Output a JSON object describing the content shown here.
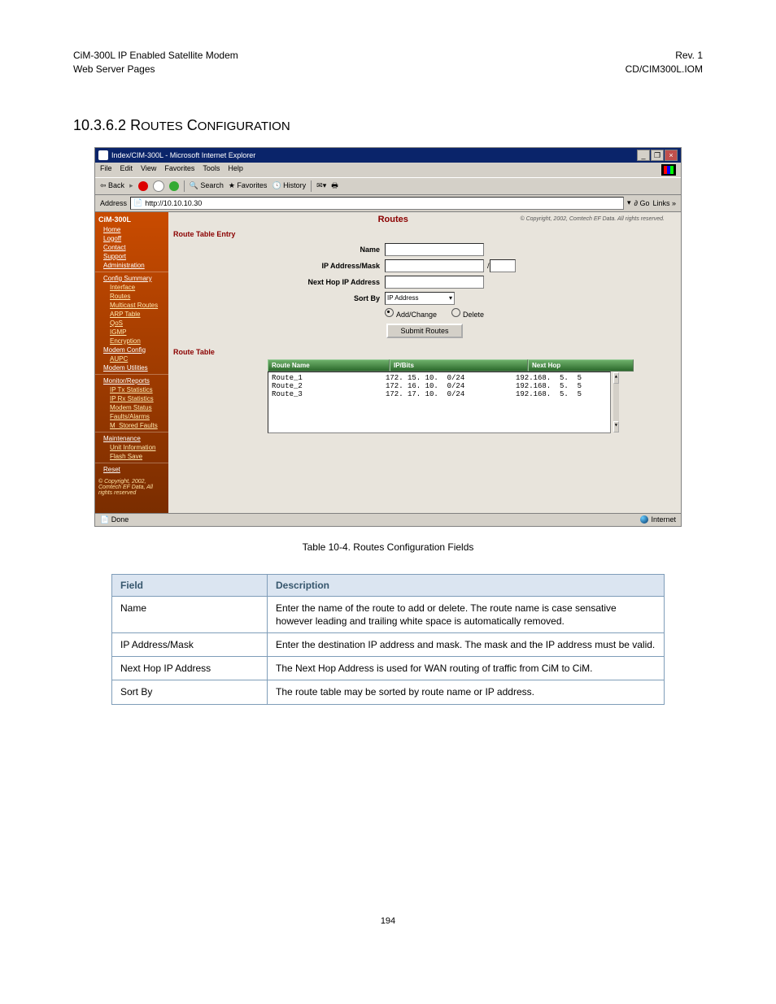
{
  "doc": {
    "header_left_line1": "CiM-300L IP Enabled Satellite Modem",
    "header_left_line2": "Web Server Pages",
    "header_right_line1": "Rev. 1",
    "header_right_line2": "CD/CIM300L.IOM",
    "section_number": "10.3.6.2",
    "section_title": "Routes Configuration",
    "caption": "Table 10-4.  Routes Configuration Fields",
    "page_number": "194"
  },
  "ie": {
    "title": "Index/CIM-300L - Microsoft Internet Explorer",
    "menus": [
      "File",
      "Edit",
      "View",
      "Favorites",
      "Tools",
      "Help"
    ],
    "toolbar_text": {
      "back": "Back",
      "search": "Search",
      "favorites": "Favorites",
      "history": "History"
    },
    "address_label": "Address",
    "address_value": "http://10.10.10.30",
    "go_label": "Go",
    "links_label": "Links »",
    "status_done": "Done",
    "status_zone": "Internet"
  },
  "sidebar": {
    "product": "CiM-300L",
    "links": [
      {
        "label": "Home",
        "sub": false
      },
      {
        "label": "Logoff",
        "sub": false
      },
      {
        "label": "Contact",
        "sub": false
      },
      {
        "label": "Support",
        "sub": false
      },
      {
        "label": "Administration",
        "sub": false,
        "sep": true
      },
      {
        "label": "Config Summary",
        "sub": false
      },
      {
        "label": "Interface",
        "sub": true
      },
      {
        "label": "Routes",
        "sub": true
      },
      {
        "label": "Multicast Routes",
        "sub": true
      },
      {
        "label": "ARP Table",
        "sub": true
      },
      {
        "label": "QoS",
        "sub": true
      },
      {
        "label": "IGMP",
        "sub": true
      },
      {
        "label": "Encryption",
        "sub": true
      },
      {
        "label": "Modem Config",
        "sub": false
      },
      {
        "label": "AUPC",
        "sub": true
      },
      {
        "label": "Modem Utilities",
        "sub": false,
        "sep": true
      },
      {
        "label": "Monitor/Reports",
        "sub": false
      },
      {
        "label": "IP Tx Statistics",
        "sub": true
      },
      {
        "label": "IP Rx Statistics",
        "sub": true
      },
      {
        "label": "Modem Status",
        "sub": true
      },
      {
        "label": "Faults/Alarms",
        "sub": true
      },
      {
        "label": "M_Stored Faults",
        "sub": true,
        "sep": true
      },
      {
        "label": "Maintenance",
        "sub": false
      },
      {
        "label": "Unit Information",
        "sub": true
      },
      {
        "label": "Flash Save",
        "sub": true,
        "sep": true
      },
      {
        "label": "Reset",
        "sub": false
      }
    ],
    "footer": "© Copyright, 2002, Comtech EF Data, All rights reserved"
  },
  "routes": {
    "page_title": "Routes",
    "page_copyright": "© Copyright, 2002, Comtech EF Data. All rights reserved.",
    "entry_heading": "Route Table Entry",
    "labels": {
      "name": "Name",
      "ipmask": "IP Address/Mask",
      "nexthop": "Next Hop IP Address",
      "sortby": "Sort By",
      "addchange": "Add/Change",
      "delete": "Delete",
      "submit": "Submit Routes"
    },
    "sort_value": "IP Address",
    "table_heading": "Route Table",
    "columns": [
      "Route Name",
      "IP/Bits",
      "Next Hop"
    ],
    "rows": [
      {
        "name": "Route_1",
        "ip": "172. 15. 10.  0/24",
        "hop": "192.168.  5.  5"
      },
      {
        "name": "Route_2",
        "ip": "172. 16. 10.  0/24",
        "hop": "192.168.  5.  5"
      },
      {
        "name": "Route_3",
        "ip": "172. 17. 10.  0/24",
        "hop": "192.168.  5.  5"
      }
    ]
  },
  "field_table": {
    "head_field": "Field",
    "head_desc": "Description",
    "rows": [
      {
        "field": "Name",
        "desc": "Enter the name of the route to add or delete.  The route name is case sensative however leading and trailing white space is automatically removed."
      },
      {
        "field": "IP Address/Mask",
        "desc": "Enter the destination IP address and mask.  The mask and the IP address must be valid."
      },
      {
        "field": "Next Hop IP Address",
        "desc": "The Next Hop Address is used for WAN routing of traffic from CiM to CiM."
      },
      {
        "field": "Sort By",
        "desc": "The route table may be sorted by route name or IP address."
      }
    ]
  },
  "colors": {
    "ie_titlebar": "#0a246a",
    "ie_chrome": "#d4d0c8",
    "sidebar_top": "#c94b00",
    "sidebar_bottom": "#7a2d00",
    "main_bg": "#e8e4dc",
    "table_header_bg": "#dbe5f1",
    "table_header_text": "#36566d",
    "table_border": "#7f9db9",
    "route_thead_top": "#6db06a",
    "route_thead_bottom": "#2d6a2d"
  }
}
